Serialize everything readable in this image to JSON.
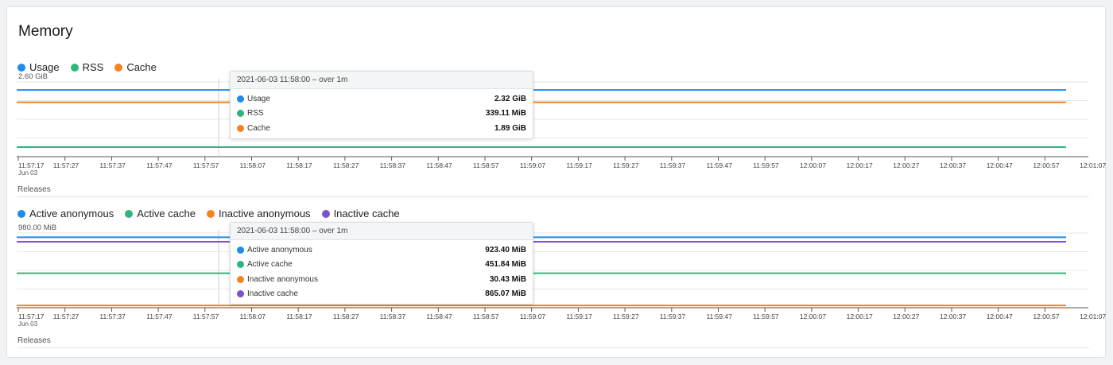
{
  "panel": {
    "title": "Memory",
    "releases_label": "Releases"
  },
  "colors": {
    "blue": "#1f8ceb",
    "green": "#2eb77c",
    "orange": "#f5831f",
    "purple": "#7d4fd1"
  },
  "x_ticks": [
    "11:57:17",
    "11:57:27",
    "11:57:37",
    "11:57:47",
    "11:57:57",
    "11:58:07",
    "11:58:17",
    "11:58:27",
    "11:58:37",
    "11:58:47",
    "11:58:57",
    "11:59:07",
    "11:59:17",
    "11:59:27",
    "11:59:37",
    "11:59:47",
    "11:59:57",
    "12:00:07",
    "12:00:17",
    "12:00:27",
    "12:00:37",
    "12:00:47",
    "12:00:57",
    "12:01:07"
  ],
  "x_sub": "Jun 03",
  "charts": [
    {
      "legend": [
        {
          "name": "Usage",
          "color": "#1f8ceb"
        },
        {
          "name": "RSS",
          "color": "#2eb77c"
        },
        {
          "name": "Cache",
          "color": "#f5831f"
        }
      ],
      "y_max_label": "2.60 GiB",
      "tooltip": {
        "header": "2021-06-03 11:58:00 – over 1m",
        "rows": [
          {
            "name": "Usage",
            "value": "2.32 GiB",
            "color": "#1f8ceb"
          },
          {
            "name": "RSS",
            "value": "339.11 MiB",
            "color": "#2eb77c"
          },
          {
            "name": "Cache",
            "value": "1.89 GiB",
            "color": "#f5831f"
          }
        ]
      }
    },
    {
      "legend": [
        {
          "name": "Active anonymous",
          "color": "#1f8ceb"
        },
        {
          "name": "Active cache",
          "color": "#2eb77c"
        },
        {
          "name": "Inactive anonymous",
          "color": "#f5831f"
        },
        {
          "name": "Inactive cache",
          "color": "#7d4fd1"
        }
      ],
      "y_max_label": "980.00 MiB",
      "tooltip": {
        "header": "2021-06-03 11:58:00 – over 1m",
        "rows": [
          {
            "name": "Active anonymous",
            "value": "923.40 MiB",
            "color": "#1f8ceb"
          },
          {
            "name": "Active cache",
            "value": "451.84 MiB",
            "color": "#2eb77c"
          },
          {
            "name": "Inactive anonymous",
            "value": "30.43 MiB",
            "color": "#f5831f"
          },
          {
            "name": "Inactive cache",
            "value": "865.07 MiB",
            "color": "#7d4fd1"
          }
        ]
      }
    }
  ],
  "chart_data": [
    {
      "type": "line",
      "x": [
        "11:57:17",
        "12:00:57"
      ],
      "y_max": 2.6,
      "y_unit": "GiB",
      "series": [
        {
          "name": "Usage",
          "values": [
            2.32,
            2.32
          ]
        },
        {
          "name": "RSS",
          "values": [
            0.331,
            0.331
          ]
        },
        {
          "name": "Cache",
          "values": [
            1.89,
            1.89
          ]
        }
      ]
    },
    {
      "type": "line",
      "x": [
        "11:57:17",
        "12:00:57"
      ],
      "y_max": 980,
      "y_unit": "MiB",
      "series": [
        {
          "name": "Active anonymous",
          "values": [
            923.4,
            923.4
          ]
        },
        {
          "name": "Active cache",
          "values": [
            451.84,
            451.84
          ]
        },
        {
          "name": "Inactive anonymous",
          "values": [
            30.43,
            30.43
          ]
        },
        {
          "name": "Inactive cache",
          "values": [
            865.07,
            865.07
          ]
        }
      ]
    }
  ]
}
